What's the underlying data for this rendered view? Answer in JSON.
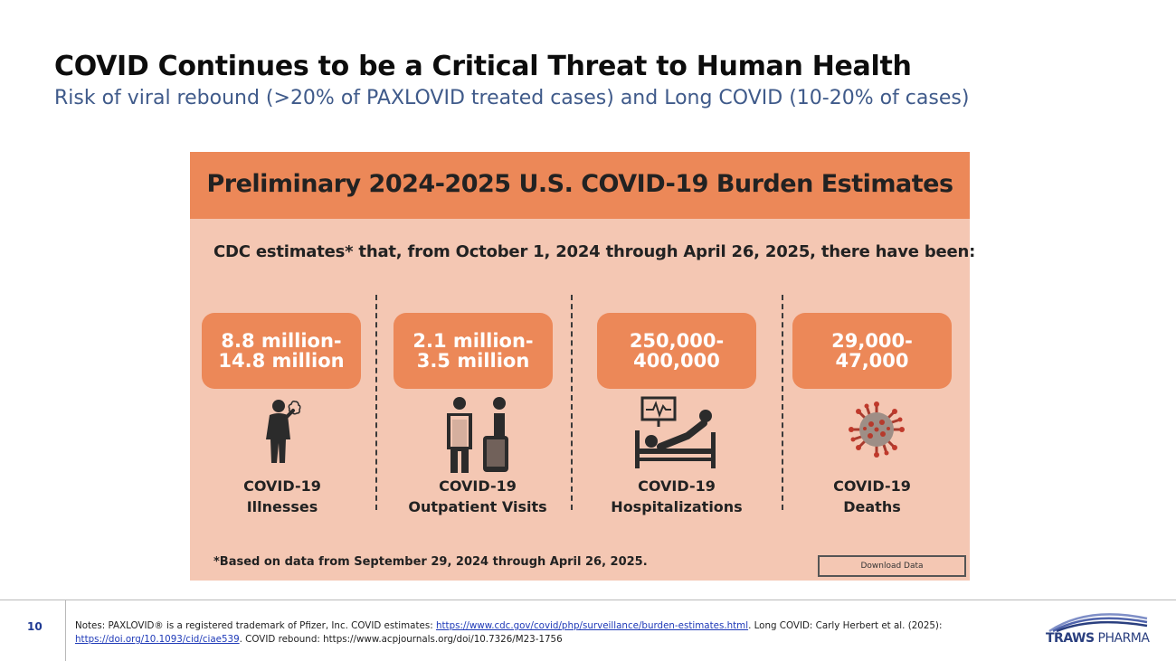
{
  "slide": {
    "title": "COVID Continues to be a Critical Threat to Human Health",
    "subtitle": "Risk of viral rebound (>20% of PAXLOVID treated cases) and Long COVID (10-20% of cases)",
    "page_number": "10"
  },
  "infographic": {
    "header": "Preliminary 2024-2025 U.S. COVID-19 Burden Estimates",
    "intro": "CDC estimates* that, from October 1, 2024 through April 26, 2025, there have been:",
    "stats": [
      {
        "value_line1": "8.8 million-",
        "value_line2": "14.8 million",
        "label_line1": "COVID-19",
        "label_line2": "Illnesses",
        "icon": "sick-person-icon"
      },
      {
        "value_line1": "2.1 million-",
        "value_line2": "3.5 million",
        "label_line1": "COVID-19",
        "label_line2": "Outpatient Visits",
        "icon": "doctor-patient-icon"
      },
      {
        "value_line1": "250,000-",
        "value_line2": "400,000",
        "label_line1": "COVID-19",
        "label_line2": "Hospitalizations",
        "icon": "hospital-bed-icon"
      },
      {
        "value_line1": "29,000-",
        "value_line2": "47,000",
        "label_line1": "COVID-19",
        "label_line2": "Deaths",
        "icon": "virus-icon"
      }
    ],
    "footnote": "*Based on data from September 29, 2024 through April 26, 2025.",
    "download_label": "Download Data"
  },
  "notes": {
    "part1": "Notes: PAXLOVID® is a registered trademark of Pfizer, Inc. COVID estimates: ",
    "link1": "https://www.cdc.gov/covid/php/surveillance/burden-estimates.html",
    "part2": ". Long COVID: Carly Herbert et al. (2025): ",
    "link2": "https://doi.org/10.1093/cid/ciae539",
    "part3": ". COVID rebound: https://www.acpjournals.org/doi/10.7326/M23-1756"
  },
  "logo": {
    "word1": "TRAWS",
    "word2": "PHARMA"
  },
  "colors": {
    "accent_orange": "#ec8858",
    "panel_peach": "#f4c7b3",
    "subtitle_blue": "#3f5a8a",
    "brand_navy": "#2a3f7f"
  }
}
